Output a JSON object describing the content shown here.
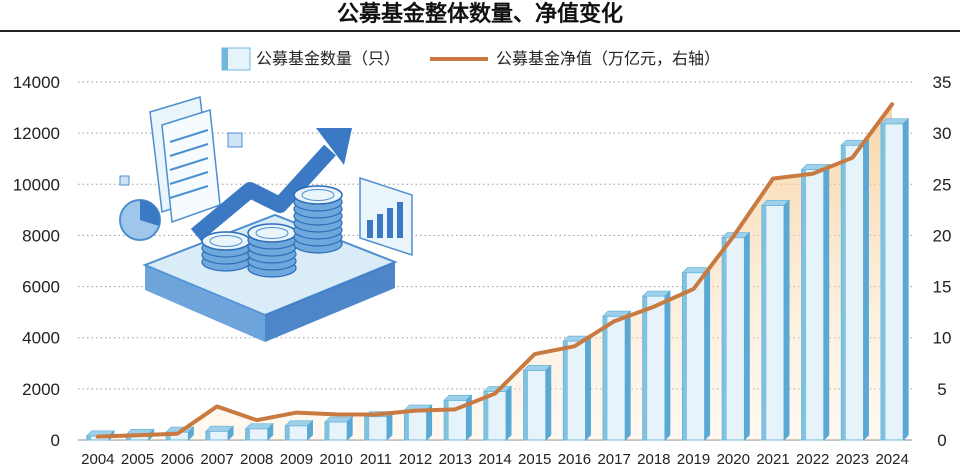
{
  "title": "公募基金整体数量、净值变化",
  "chart_data": {
    "type": "bar",
    "categories": [
      "2004",
      "2005",
      "2006",
      "2007",
      "2008",
      "2009",
      "2010",
      "2011",
      "2012",
      "2013",
      "2014",
      "2015",
      "2016",
      "2017",
      "2018",
      "2019",
      "2020",
      "2021",
      "2022",
      "2023",
      "2024"
    ],
    "series": [
      {
        "name": "公募基金数量（只）",
        "chart_type": "bar",
        "axis": "left",
        "color": "#6fb8dc",
        "values": [
          161,
          218,
          307,
          341,
          439,
          557,
          704,
          914,
          1173,
          1552,
          1897,
          2722,
          3867,
          4841,
          5626,
          6544,
          7913,
          9175,
          10576,
          11528,
          12367
        ]
      },
      {
        "name": "公募基金净值（万亿元，右轴）",
        "chart_type": "line",
        "axis": "right",
        "color": "#c87a40",
        "values": [
          0.33,
          0.47,
          0.61,
          3.28,
          1.94,
          2.68,
          2.5,
          2.49,
          2.87,
          3.0,
          4.54,
          8.4,
          9.16,
          11.6,
          13.03,
          14.77,
          19.89,
          25.56,
          26.03,
          27.6,
          32.83
        ]
      }
    ],
    "y_left": {
      "ticks": [
        "0",
        "2000",
        "4000",
        "6000",
        "8000",
        "10000",
        "12000",
        "14000"
      ],
      "lim": [
        0,
        14000
      ]
    },
    "y_right": {
      "ticks": [
        "0",
        "5",
        "10",
        "15",
        "20",
        "25",
        "30",
        "35"
      ],
      "lim": [
        0,
        35
      ]
    },
    "grid": "dotted horizontal",
    "legend": "top-center"
  }
}
